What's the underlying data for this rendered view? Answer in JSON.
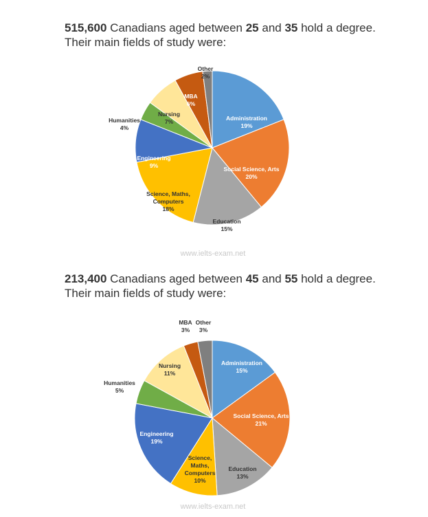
{
  "charts": [
    {
      "heading": {
        "count": "515,600",
        "text1": " Canadians aged between ",
        "age_low": "25",
        "text2": " and ",
        "age_high": "35",
        "text3": " hold a degree.",
        "line2": "Their main fields of study were:"
      },
      "watermark": "www.ielts-exam.net"
    },
    {
      "heading": {
        "count": "213,400",
        "text1": " Canadians aged between ",
        "age_low": "45",
        "text2": " and ",
        "age_high": "55",
        "text3": " hold a degree.",
        "line2": "Their main fields of study were:"
      },
      "watermark": "www.ielts-exam.net"
    }
  ],
  "chart_data": [
    {
      "type": "pie",
      "title": "515,600 Canadians aged between 25 and 35 hold a degree. Their main fields of study were:",
      "slices": [
        {
          "label": "Administration",
          "value": 19,
          "display": "19%",
          "color": "#5b9bd5"
        },
        {
          "label": "Social Science, Arts",
          "value": 20,
          "display": "20%",
          "color": "#ed7d31"
        },
        {
          "label": "Education",
          "value": 15,
          "display": "15%",
          "color": "#a5a5a5"
        },
        {
          "label": "Science, Maths, Computers",
          "value": 18,
          "display": "18%",
          "color": "#ffc000"
        },
        {
          "label": "Engineering",
          "value": 9,
          "display": "9%",
          "color": "#4472c4"
        },
        {
          "label": "Humanities",
          "value": 4,
          "display": "4%",
          "color": "#70ad47"
        },
        {
          "label": "Nursing",
          "value": 7,
          "display": "7%",
          "color": "#ffe699"
        },
        {
          "label": "MBA",
          "value": 6,
          "display": "6%",
          "color": "#c55a11"
        },
        {
          "label": "Other",
          "value": 2,
          "display": "2%",
          "color": "#7f7f7f"
        }
      ]
    },
    {
      "type": "pie",
      "title": "213,400 Canadians aged between 45 and 55 hold a degree. Their main fields of study were:",
      "slices": [
        {
          "label": "Administration",
          "value": 15,
          "display": "15%",
          "color": "#5b9bd5"
        },
        {
          "label": "Social Science, Arts",
          "value": 21,
          "display": "21%",
          "color": "#ed7d31"
        },
        {
          "label": "Education",
          "value": 13,
          "display": "13%",
          "color": "#a5a5a5"
        },
        {
          "label": "Science, Maths, Computers",
          "value": 10,
          "display": "10%",
          "color": "#ffc000"
        },
        {
          "label": "Engineering",
          "value": 19,
          "display": "19%",
          "color": "#4472c4"
        },
        {
          "label": "Humanities",
          "value": 5,
          "display": "5%",
          "color": "#70ad47"
        },
        {
          "label": "Nursing",
          "value": 11,
          "display": "11%",
          "color": "#ffe699"
        },
        {
          "label": "MBA",
          "value": 3,
          "display": "3%",
          "color": "#c55a11"
        },
        {
          "label": "Other",
          "value": 3,
          "display": "3%",
          "color": "#7f7f7f"
        }
      ]
    }
  ]
}
